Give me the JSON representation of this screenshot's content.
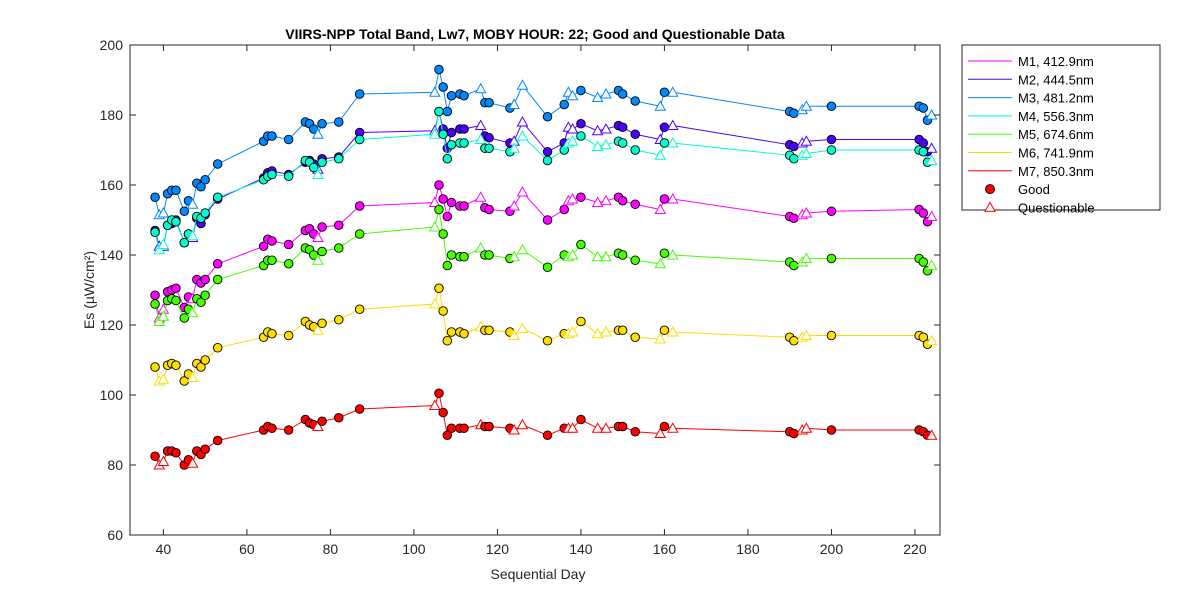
{
  "chart_data": {
    "type": "line",
    "title": "VIIRS-NPP Total Band,  Lw7, MOBY HOUR: 22;  Good and Questionable Data",
    "xlabel": "Sequential Day",
    "ylabel": "Es (µW/cm²)",
    "xlim": [
      32,
      226
    ],
    "ylim": [
      60,
      200
    ],
    "xticks": [
      40,
      60,
      80,
      100,
      120,
      140,
      160,
      180,
      200,
      220
    ],
    "yticks": [
      60,
      80,
      100,
      120,
      140,
      160,
      180,
      200
    ],
    "grid": false,
    "legend_position": "outside-top-right",
    "x": [
      38,
      39,
      40,
      41,
      42,
      43,
      45,
      46,
      47,
      48,
      49,
      50,
      53,
      64,
      65,
      66,
      70,
      74,
      75,
      76,
      77,
      78,
      82,
      87,
      105,
      106,
      107,
      108,
      109,
      111,
      112,
      116,
      117,
      118,
      123,
      124,
      126,
      132,
      136,
      137,
      138,
      140,
      144,
      146,
      149,
      150,
      153,
      159,
      160,
      162,
      190,
      191,
      193,
      194,
      200,
      221,
      222,
      223,
      224
    ],
    "status": [
      "g",
      "q",
      "q",
      "g",
      "g",
      "g",
      "g",
      "g",
      "q",
      "g",
      "g",
      "g",
      "g",
      "g",
      "g",
      "g",
      "g",
      "g",
      "g",
      "g",
      "q",
      "g",
      "g",
      "g",
      "q",
      "g",
      "g",
      "g",
      "g",
      "g",
      "g",
      "q",
      "g",
      "g",
      "g",
      "q",
      "q",
      "g",
      "g",
      "q",
      "q",
      "g",
      "q",
      "q",
      "g",
      "g",
      "g",
      "q",
      "g",
      "q",
      "g",
      "g",
      "q",
      "q",
      "g",
      "g",
      "g",
      "g",
      "q"
    ],
    "series": [
      {
        "name": "M1, 412.9nm",
        "color": "#ff00ff",
        "values": [
          128.5,
          122.0,
          124.5,
          129.5,
          130.0,
          130.5,
          125.0,
          128.0,
          127.5,
          133.0,
          132.0,
          133.0,
          137.5,
          142.5,
          144.5,
          144.0,
          143.0,
          147.0,
          147.5,
          146.0,
          145.0,
          148.0,
          148.5,
          154.0,
          155.0,
          160.0,
          156.0,
          151.0,
          155.0,
          154.0,
          154.0,
          156.5,
          153.5,
          153.0,
          152.5,
          154.0,
          158.0,
          150.0,
          153.0,
          155.5,
          156.0,
          156.5,
          155.0,
          155.5,
          156.5,
          155.5,
          154.5,
          153.0,
          156.0,
          156.0,
          151.0,
          150.5,
          151.5,
          152.0,
          152.5,
          153.0,
          152.0,
          149.5,
          151.0
        ]
      },
      {
        "name": "M2, 444.5nm",
        "color": "#4b00ff",
        "values": [
          147.0,
          142.5,
          142.5,
          148.5,
          149.0,
          150.0,
          143.5,
          146.0,
          145.0,
          150.5,
          149.0,
          151.5,
          156.0,
          162.0,
          163.5,
          164.0,
          163.0,
          166.5,
          167.0,
          166.0,
          164.5,
          167.5,
          168.0,
          175.0,
          175.5,
          181.0,
          176.0,
          170.5,
          175.0,
          176.0,
          176.0,
          177.0,
          174.0,
          173.5,
          172.0,
          172.5,
          178.0,
          169.5,
          172.0,
          176.5,
          176.0,
          177.5,
          175.5,
          176.0,
          177.0,
          176.5,
          174.5,
          173.0,
          176.5,
          177.0,
          171.5,
          171.0,
          172.0,
          172.5,
          173.0,
          173.0,
          172.0,
          169.5,
          170.5
        ]
      },
      {
        "name": "M3, 481.2nm",
        "color": "#0088ff",
        "values": [
          156.5,
          151.5,
          152.0,
          157.5,
          158.5,
          158.5,
          152.5,
          155.5,
          154.5,
          160.5,
          159.5,
          161.5,
          166.0,
          172.5,
          174.0,
          174.0,
          173.0,
          178.0,
          177.5,
          176.0,
          174.5,
          177.5,
          178.0,
          186.0,
          186.5,
          193.0,
          188.0,
          181.0,
          185.5,
          186.0,
          185.5,
          187.5,
          183.5,
          183.5,
          182.0,
          183.0,
          188.5,
          179.5,
          183.0,
          186.5,
          185.5,
          187.0,
          185.0,
          186.0,
          187.0,
          186.0,
          184.0,
          182.5,
          186.5,
          186.5,
          181.0,
          180.5,
          181.5,
          182.5,
          182.5,
          182.5,
          182.0,
          178.5,
          180.0
        ]
      },
      {
        "name": "M4, 556.3nm",
        "color": "#00ffcc",
        "values": [
          146.5,
          141.5,
          143.0,
          148.5,
          150.0,
          149.5,
          143.5,
          146.0,
          145.5,
          151.0,
          150.5,
          152.0,
          156.5,
          161.5,
          162.5,
          163.0,
          162.5,
          167.0,
          166.5,
          165.0,
          163.0,
          166.5,
          167.5,
          173.0,
          174.5,
          181.0,
          174.5,
          167.5,
          171.5,
          172.0,
          172.0,
          173.0,
          170.5,
          170.5,
          169.5,
          170.5,
          174.0,
          167.0,
          170.0,
          172.0,
          172.5,
          174.0,
          171.0,
          171.5,
          172.5,
          172.0,
          170.0,
          168.5,
          172.0,
          172.0,
          168.5,
          167.5,
          168.5,
          169.0,
          170.0,
          170.0,
          169.5,
          166.5,
          167.0
        ]
      },
      {
        "name": "M5, 674.6nm",
        "color": "#44ff00",
        "values": [
          126.0,
          121.0,
          122.5,
          127.0,
          127.5,
          127.0,
          122.0,
          124.5,
          123.5,
          127.5,
          126.5,
          128.5,
          133.0,
          137.0,
          138.5,
          138.5,
          137.5,
          142.0,
          141.5,
          140.0,
          138.5,
          141.0,
          142.0,
          146.0,
          148.0,
          153.0,
          146.0,
          137.0,
          140.0,
          139.5,
          139.5,
          142.0,
          140.0,
          140.0,
          139.0,
          139.5,
          141.5,
          136.5,
          140.0,
          139.5,
          140.0,
          143.0,
          139.5,
          139.5,
          140.5,
          140.0,
          138.5,
          137.5,
          140.5,
          140.0,
          138.0,
          137.0,
          138.0,
          139.0,
          139.0,
          139.0,
          138.0,
          135.5,
          137.0
        ]
      },
      {
        "name": "M6, 741.9nm",
        "color": "#ffdd00",
        "values": [
          108.0,
          104.0,
          104.5,
          108.5,
          109.0,
          108.5,
          104.0,
          106.0,
          105.0,
          109.0,
          108.0,
          110.0,
          113.5,
          116.5,
          118.0,
          117.5,
          117.0,
          121.0,
          120.0,
          119.5,
          118.5,
          120.5,
          121.5,
          124.5,
          126.0,
          130.5,
          124.0,
          115.5,
          118.0,
          118.0,
          117.5,
          119.5,
          118.5,
          118.5,
          118.0,
          117.0,
          119.0,
          115.5,
          117.5,
          117.5,
          118.0,
          121.0,
          117.5,
          118.0,
          118.5,
          118.5,
          116.5,
          116.0,
          118.5,
          118.0,
          116.5,
          115.5,
          116.5,
          117.0,
          117.0,
          117.0,
          116.5,
          114.5,
          115.5
        ]
      },
      {
        "name": "M7, 850.3nm",
        "color": "#ff0000",
        "values": [
          82.5,
          80.0,
          81.0,
          84.0,
          84.0,
          83.5,
          80.0,
          81.5,
          80.5,
          84.0,
          83.0,
          84.5,
          87.0,
          90.0,
          91.0,
          90.5,
          90.0,
          93.0,
          92.0,
          91.5,
          91.0,
          92.5,
          93.5,
          96.0,
          97.0,
          100.5,
          95.0,
          88.5,
          90.5,
          90.5,
          90.5,
          91.5,
          91.0,
          91.0,
          90.5,
          90.0,
          91.5,
          88.5,
          90.5,
          90.5,
          90.5,
          93.0,
          90.5,
          90.5,
          91.0,
          91.0,
          89.5,
          89.0,
          91.0,
          90.5,
          89.5,
          89.0,
          90.0,
          90.5,
          90.0,
          90.0,
          89.5,
          88.5,
          88.5
        ]
      }
    ],
    "legend_markers": [
      {
        "label": "Good",
        "marker": "circle",
        "color": "#ff0000"
      },
      {
        "label": "Questionable",
        "marker": "triangle",
        "color": "#ff0000"
      }
    ]
  }
}
